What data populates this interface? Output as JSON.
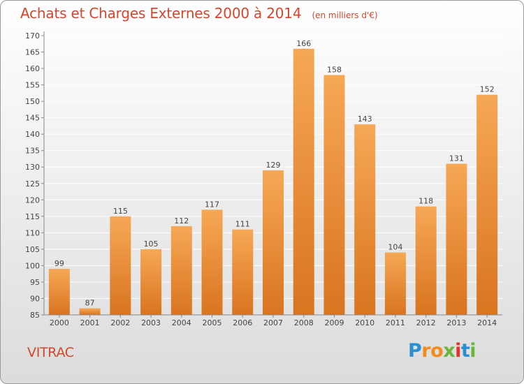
{
  "title": "Achats et Charges Externes 2000 à 2014",
  "subtitle": "(en milliers d'€)",
  "commune": "VITRAC",
  "logo": {
    "letters": [
      "P",
      "r",
      "o",
      "x",
      "i",
      "t",
      "i"
    ],
    "colors": [
      "#2a8fd0",
      "#f08c1e",
      "#f08c1e",
      "#6ab63a",
      "#e8302a",
      "#2a8fd0",
      "#6ab63a"
    ]
  },
  "colors": {
    "bar_top": "#f6a855",
    "bar_bottom": "#d9741f",
    "axis": "#888888",
    "grid": "#ffffff",
    "text": "#444444"
  },
  "chart_data": {
    "type": "bar",
    "title": "Achats et Charges Externes 2000 à 2014",
    "subtitle": "(en milliers d'€)",
    "categories": [
      "2000",
      "2001",
      "2002",
      "2003",
      "2004",
      "2005",
      "2006",
      "2007",
      "2008",
      "2009",
      "2010",
      "2011",
      "2012",
      "2013",
      "2014"
    ],
    "values": [
      99,
      87,
      115,
      105,
      112,
      117,
      111,
      129,
      166,
      158,
      143,
      104,
      118,
      131,
      152
    ],
    "ylim": [
      85,
      170
    ],
    "yticks": [
      85,
      90,
      95,
      100,
      105,
      110,
      115,
      120,
      125,
      130,
      135,
      140,
      145,
      150,
      155,
      160,
      165,
      170
    ],
    "grid": true,
    "data_labels": true,
    "xlabel": "",
    "ylabel": ""
  }
}
